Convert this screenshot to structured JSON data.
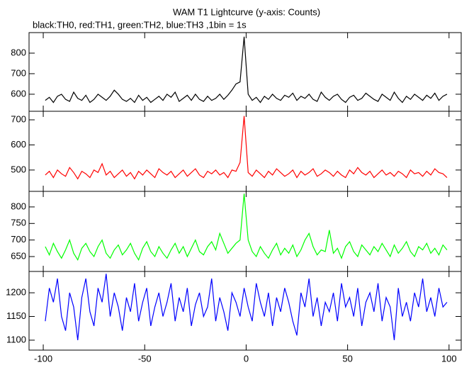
{
  "chart_data": [
    {
      "type": "line",
      "title": "WAM T1 Lightcurve (y-axis: Counts)",
      "subtitle": "black:TH0, red:TH1, green:TH2, blue:TH3 ,1bin = 1s",
      "color": "#000000",
      "x": [
        -99,
        -97,
        -95,
        -93,
        -91,
        -89,
        -87,
        -85,
        -83,
        -81,
        -79,
        -77,
        -75,
        -73,
        -71,
        -69,
        -67,
        -65,
        -63,
        -61,
        -59,
        -57,
        -55,
        -53,
        -51,
        -49,
        -47,
        -45,
        -43,
        -41,
        -39,
        -37,
        -35,
        -33,
        -31,
        -29,
        -27,
        -25,
        -23,
        -21,
        -19,
        -17,
        -15,
        -13,
        -11,
        -9,
        -7,
        -5,
        -3,
        -1,
        1,
        3,
        5,
        7,
        9,
        11,
        13,
        15,
        17,
        19,
        21,
        23,
        25,
        27,
        29,
        31,
        33,
        35,
        37,
        39,
        41,
        43,
        45,
        47,
        49,
        51,
        53,
        55,
        57,
        59,
        61,
        63,
        65,
        67,
        69,
        71,
        73,
        75,
        77,
        79,
        81,
        83,
        85,
        87,
        89,
        91,
        93,
        95,
        97,
        99
      ],
      "values": [
        570,
        585,
        560,
        590,
        600,
        575,
        565,
        610,
        580,
        570,
        595,
        560,
        575,
        600,
        585,
        570,
        590,
        620,
        600,
        575,
        565,
        580,
        560,
        595,
        570,
        585,
        560,
        575,
        590,
        570,
        600,
        585,
        610,
        565,
        580,
        595,
        570,
        600,
        575,
        565,
        590,
        570,
        580,
        600,
        575,
        595,
        620,
        650,
        660,
        880,
        600,
        570,
        585,
        560,
        590,
        575,
        600,
        580,
        570,
        595,
        585,
        605,
        570,
        590,
        580,
        600,
        575,
        565,
        610,
        585,
        570,
        590,
        600,
        575,
        560,
        585,
        595,
        570,
        580,
        605,
        590,
        575,
        565,
        600,
        585,
        570,
        610,
        580,
        560,
        590,
        575,
        600,
        585,
        570,
        595,
        580,
        605,
        570,
        590,
        600
      ],
      "ylim": [
        517,
        900
      ],
      "yticks": [
        600,
        700,
        800
      ]
    },
    {
      "type": "line",
      "color": "#ff0000",
      "x": [
        -99,
        -97,
        -95,
        -93,
        -91,
        -89,
        -87,
        -85,
        -83,
        -81,
        -79,
        -77,
        -75,
        -73,
        -71,
        -69,
        -67,
        -65,
        -63,
        -61,
        -59,
        -57,
        -55,
        -53,
        -51,
        -49,
        -47,
        -45,
        -43,
        -41,
        -39,
        -37,
        -35,
        -33,
        -31,
        -29,
        -27,
        -25,
        -23,
        -21,
        -19,
        -17,
        -15,
        -13,
        -11,
        -9,
        -7,
        -5,
        -3,
        -1,
        1,
        3,
        5,
        7,
        9,
        11,
        13,
        15,
        17,
        19,
        21,
        23,
        25,
        27,
        29,
        31,
        33,
        35,
        37,
        39,
        41,
        43,
        45,
        47,
        49,
        51,
        53,
        55,
        57,
        59,
        61,
        63,
        65,
        67,
        69,
        71,
        73,
        75,
        77,
        79,
        81,
        83,
        85,
        87,
        89,
        91,
        93,
        95,
        97,
        99
      ],
      "values": [
        480,
        495,
        470,
        500,
        485,
        475,
        510,
        490,
        465,
        495,
        485,
        470,
        500,
        490,
        525,
        480,
        495,
        470,
        485,
        500,
        475,
        490,
        465,
        495,
        480,
        500,
        485,
        470,
        505,
        490,
        480,
        495,
        470,
        485,
        500,
        475,
        490,
        505,
        480,
        470,
        495,
        485,
        500,
        480,
        490,
        470,
        500,
        495,
        530,
        715,
        490,
        475,
        500,
        485,
        470,
        495,
        480,
        505,
        490,
        475,
        485,
        500,
        470,
        495,
        480,
        490,
        505,
        475,
        485,
        500,
        490,
        475,
        495,
        480,
        470,
        500,
        485,
        510,
        490,
        480,
        495,
        470,
        485,
        500,
        480,
        490,
        475,
        495,
        485,
        470,
        500,
        485,
        490,
        475,
        495,
        480,
        505,
        490,
        485,
        470
      ],
      "ylim": [
        415,
        734
      ],
      "yticks": [
        500,
        600,
        700
      ]
    },
    {
      "type": "line",
      "color": "#00ff00",
      "x": [
        -99,
        -97,
        -95,
        -93,
        -91,
        -89,
        -87,
        -85,
        -83,
        -81,
        -79,
        -77,
        -75,
        -73,
        -71,
        -69,
        -67,
        -65,
        -63,
        -61,
        -59,
        -57,
        -55,
        -53,
        -51,
        -49,
        -47,
        -45,
        -43,
        -41,
        -39,
        -37,
        -35,
        -33,
        -31,
        -29,
        -27,
        -25,
        -23,
        -21,
        -19,
        -17,
        -15,
        -13,
        -11,
        -9,
        -7,
        -5,
        -3,
        -1,
        1,
        3,
        5,
        7,
        9,
        11,
        13,
        15,
        17,
        19,
        21,
        23,
        25,
        27,
        29,
        31,
        33,
        35,
        37,
        39,
        41,
        43,
        45,
        47,
        49,
        51,
        53,
        55,
        57,
        59,
        61,
        63,
        65,
        67,
        69,
        71,
        73,
        75,
        77,
        79,
        81,
        83,
        85,
        87,
        89,
        91,
        93,
        95,
        97,
        99
      ],
      "values": [
        680,
        655,
        690,
        665,
        645,
        670,
        700,
        660,
        640,
        675,
        690,
        665,
        650,
        680,
        700,
        660,
        645,
        670,
        685,
        655,
        670,
        690,
        660,
        640,
        675,
        695,
        665,
        650,
        680,
        660,
        645,
        670,
        690,
        660,
        680,
        650,
        675,
        700,
        665,
        655,
        680,
        695,
        670,
        720,
        690,
        660,
        675,
        690,
        700,
        840,
        700,
        665,
        650,
        680,
        660,
        645,
        670,
        690,
        655,
        675,
        660,
        685,
        650,
        670,
        700,
        720,
        680,
        655,
        670,
        665,
        730,
        660,
        675,
        645,
        680,
        695,
        665,
        650,
        685,
        670,
        655,
        680,
        665,
        690,
        670,
        650,
        685,
        660,
        675,
        695,
        665,
        650,
        680,
        670,
        690,
        660,
        675,
        655,
        685,
        670
      ],
      "ylim": [
        605,
        847
      ],
      "yticks": [
        650,
        700,
        750,
        800
      ]
    },
    {
      "type": "line",
      "color": "#0000ff",
      "x": [
        -99,
        -97,
        -95,
        -93,
        -91,
        -89,
        -87,
        -85,
        -83,
        -81,
        -79,
        -77,
        -75,
        -73,
        -71,
        -69,
        -67,
        -65,
        -63,
        -61,
        -59,
        -57,
        -55,
        -53,
        -51,
        -49,
        -47,
        -45,
        -43,
        -41,
        -39,
        -37,
        -35,
        -33,
        -31,
        -29,
        -27,
        -25,
        -23,
        -21,
        -19,
        -17,
        -15,
        -13,
        -11,
        -9,
        -7,
        -5,
        -3,
        -1,
        1,
        3,
        5,
        7,
        9,
        11,
        13,
        15,
        17,
        19,
        21,
        23,
        25,
        27,
        29,
        31,
        33,
        35,
        37,
        39,
        41,
        43,
        45,
        47,
        49,
        51,
        53,
        55,
        57,
        59,
        61,
        63,
        65,
        67,
        69,
        71,
        73,
        75,
        77,
        79,
        81,
        83,
        85,
        87,
        89,
        91,
        93,
        95,
        97,
        99
      ],
      "values": [
        1140,
        1210,
        1180,
        1230,
        1150,
        1120,
        1200,
        1170,
        1100,
        1190,
        1230,
        1160,
        1130,
        1210,
        1180,
        1240,
        1150,
        1200,
        1170,
        1120,
        1190,
        1160,
        1220,
        1140,
        1180,
        1210,
        1130,
        1170,
        1200,
        1150,
        1180,
        1220,
        1140,
        1190,
        1160,
        1210,
        1130,
        1175,
        1200,
        1150,
        1170,
        1230,
        1140,
        1190,
        1160,
        1120,
        1200,
        1180,
        1150,
        1210,
        1170,
        1140,
        1220,
        1180,
        1150,
        1200,
        1130,
        1190,
        1160,
        1210,
        1180,
        1140,
        1110,
        1200,
        1170,
        1230,
        1150,
        1190,
        1130,
        1180,
        1160,
        1200,
        1140,
        1220,
        1170,
        1190,
        1150,
        1210,
        1130,
        1180,
        1200,
        1160,
        1220,
        1140,
        1190,
        1170,
        1100,
        1210,
        1150,
        1180,
        1140,
        1200,
        1170,
        1230,
        1160,
        1190,
        1150,
        1210,
        1170,
        1180
      ],
      "ylim": [
        1079,
        1245
      ],
      "yticks": [
        1100,
        1150,
        1200
      ],
      "xlim": [
        -107,
        106
      ],
      "xticks": [
        -100,
        -50,
        0,
        50,
        100
      ]
    }
  ]
}
